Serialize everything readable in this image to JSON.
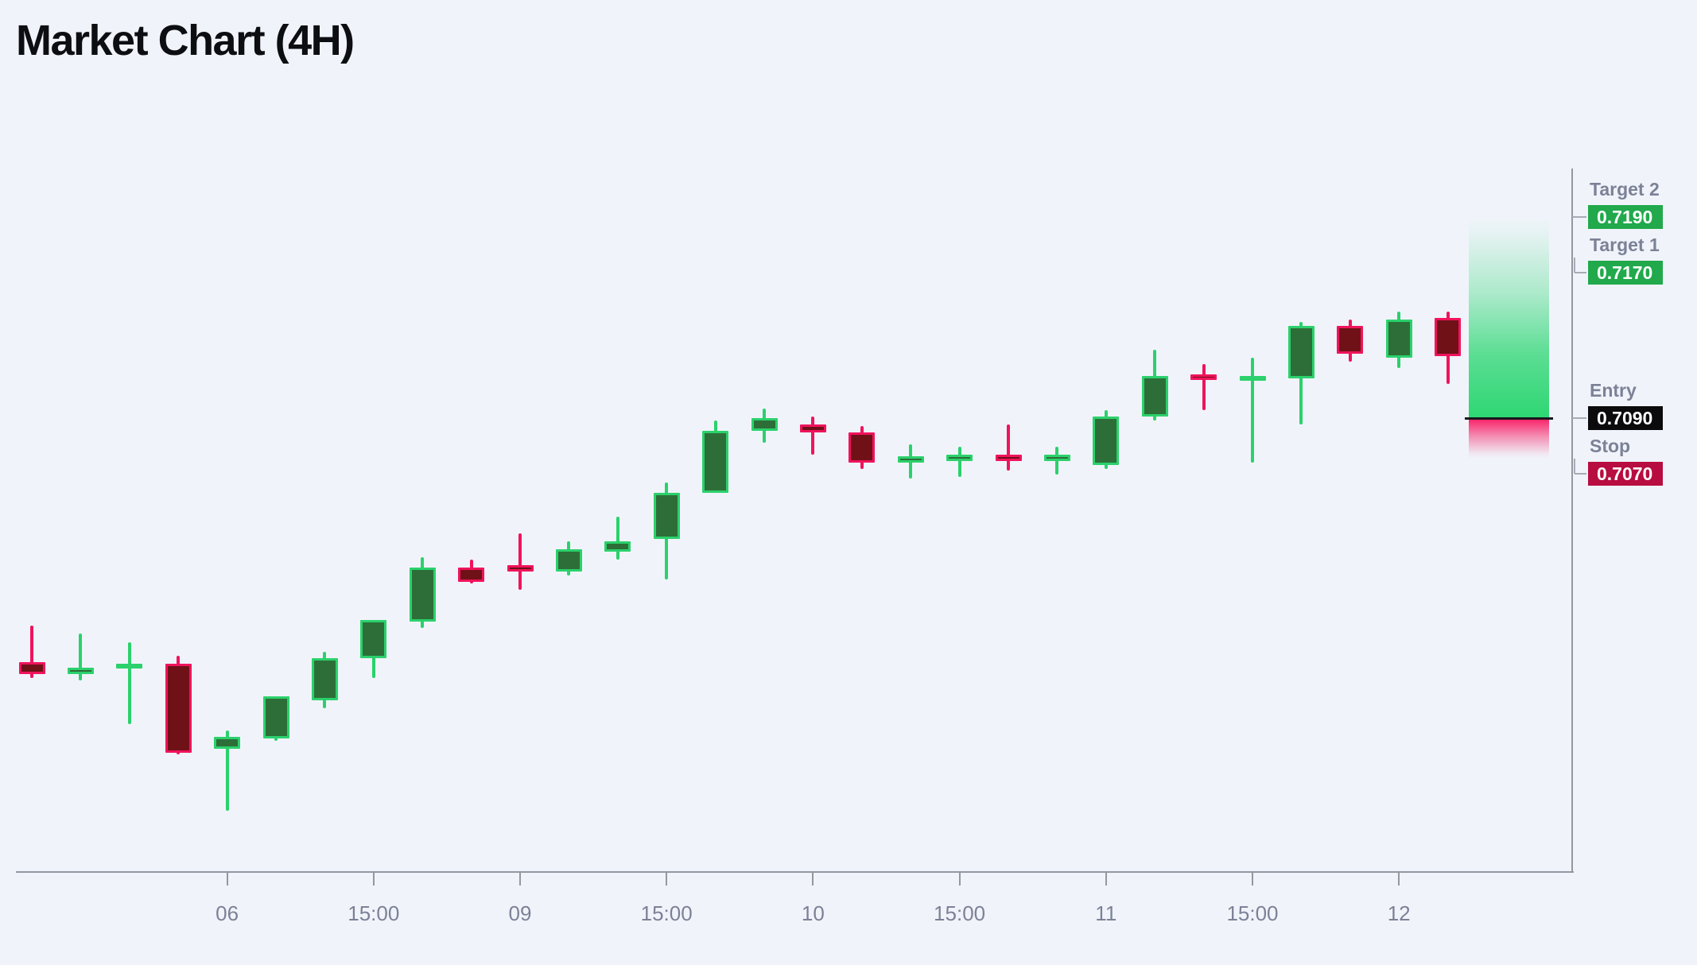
{
  "title": "Market Chart (4H)",
  "colors": {
    "background": "#f0f4fa",
    "title_text": "#0d0e12",
    "axis": "#9298a2",
    "tick_label": "#7c8197",
    "panel_label": "#7c8197",
    "bull_fill": "#2d6e38",
    "bull_border": "#2bd16c",
    "bear_fill": "#6f1117",
    "bear_border": "#f0135c",
    "profit_zone": "#23d56c",
    "stop_zone": "#f9115c",
    "entry_line": "#17181b",
    "target_badge_bg": "#21a94c",
    "entry_badge_bg": "#0b0b0d",
    "stop_badge_bg": "#b80d40",
    "badge_text": "#ffffff",
    "connector": "#a7abb5"
  },
  "trade_panel": {
    "items": [
      {
        "id": "target2",
        "label": "Target 2",
        "value": "0.7190",
        "price": 0.719,
        "badge": "target_badge_bg",
        "align": "level"
      },
      {
        "id": "target1",
        "label": "Target 1",
        "value": "0.7170",
        "price": 0.717,
        "badge": "target_badge_bg",
        "align": "below"
      },
      {
        "id": "entry",
        "label": "Entry",
        "value": "0.7090",
        "price": 0.709,
        "badge": "entry_badge_bg",
        "align": "level"
      },
      {
        "id": "stop",
        "label": "Stop",
        "value": "0.7070",
        "price": 0.707,
        "badge": "stop_badge_bg",
        "align": "below"
      }
    ]
  },
  "chart_data": {
    "type": "candlestick",
    "title": "Market Chart (4H)",
    "timeframe": "4H",
    "price_precision": 4,
    "grid": "off",
    "legend_position": "none",
    "axis_range": {
      "price_min": 0.6865,
      "price_max": 0.7214
    },
    "levels": {
      "target2": 0.719,
      "target1": 0.717,
      "entry": 0.709,
      "stop": 0.707
    },
    "x_ticks": [
      {
        "index": 4,
        "label": "06"
      },
      {
        "index": 7,
        "label": "15:00"
      },
      {
        "index": 10,
        "label": "09"
      },
      {
        "index": 13,
        "label": "15:00"
      },
      {
        "index": 16,
        "label": "10"
      },
      {
        "index": 19,
        "label": "15:00"
      },
      {
        "index": 22,
        "label": "11"
      },
      {
        "index": 25,
        "label": "15:00"
      },
      {
        "index": 28,
        "label": "12"
      }
    ],
    "candles": [
      {
        "o": 0.6969,
        "h": 0.6987,
        "l": 0.6961,
        "c": 0.6963
      },
      {
        "o": 0.6963,
        "h": 0.6983,
        "l": 0.696,
        "c": 0.6966
      },
      {
        "o": 0.6966,
        "h": 0.6979,
        "l": 0.6938,
        "c": 0.6968
      },
      {
        "o": 0.6968,
        "h": 0.6972,
        "l": 0.6923,
        "c": 0.6924
      },
      {
        "o": 0.6926,
        "h": 0.6935,
        "l": 0.6895,
        "c": 0.6932
      },
      {
        "o": 0.6931,
        "h": 0.6952,
        "l": 0.693,
        "c": 0.6952
      },
      {
        "o": 0.695,
        "h": 0.6974,
        "l": 0.6946,
        "c": 0.6971
      },
      {
        "o": 0.6971,
        "h": 0.699,
        "l": 0.6961,
        "c": 0.699
      },
      {
        "o": 0.6989,
        "h": 0.7021,
        "l": 0.6986,
        "c": 0.7016
      },
      {
        "o": 0.7016,
        "h": 0.702,
        "l": 0.7008,
        "c": 0.7009
      },
      {
        "o": 0.7017,
        "h": 0.7033,
        "l": 0.7005,
        "c": 0.7014
      },
      {
        "o": 0.7014,
        "h": 0.7029,
        "l": 0.7012,
        "c": 0.7025
      },
      {
        "o": 0.7024,
        "h": 0.7041,
        "l": 0.702,
        "c": 0.7029
      },
      {
        "o": 0.703,
        "h": 0.7058,
        "l": 0.701,
        "c": 0.7053
      },
      {
        "o": 0.7053,
        "h": 0.7089,
        "l": 0.7053,
        "c": 0.7084
      },
      {
        "o": 0.7084,
        "h": 0.7095,
        "l": 0.7078,
        "c": 0.709
      },
      {
        "o": 0.7087,
        "h": 0.7091,
        "l": 0.7072,
        "c": 0.7083
      },
      {
        "o": 0.7083,
        "h": 0.7086,
        "l": 0.7065,
        "c": 0.7068
      },
      {
        "o": 0.7068,
        "h": 0.7077,
        "l": 0.706,
        "c": 0.7071
      },
      {
        "o": 0.7069,
        "h": 0.7076,
        "l": 0.7061,
        "c": 0.7072
      },
      {
        "o": 0.7072,
        "h": 0.7087,
        "l": 0.7064,
        "c": 0.7069
      },
      {
        "o": 0.7069,
        "h": 0.7076,
        "l": 0.7062,
        "c": 0.7072
      },
      {
        "o": 0.7067,
        "h": 0.7094,
        "l": 0.7065,
        "c": 0.7091
      },
      {
        "o": 0.7091,
        "h": 0.7124,
        "l": 0.7089,
        "c": 0.7111
      },
      {
        "o": 0.7112,
        "h": 0.7117,
        "l": 0.7094,
        "c": 0.7109
      },
      {
        "o": 0.7109,
        "h": 0.712,
        "l": 0.7068,
        "c": 0.7111
      },
      {
        "o": 0.711,
        "h": 0.7138,
        "l": 0.7087,
        "c": 0.7136
      },
      {
        "o": 0.7136,
        "h": 0.7139,
        "l": 0.7118,
        "c": 0.7122
      },
      {
        "o": 0.712,
        "h": 0.7143,
        "l": 0.7115,
        "c": 0.7139
      },
      {
        "o": 0.714,
        "h": 0.7143,
        "l": 0.7107,
        "c": 0.7121
      }
    ]
  }
}
